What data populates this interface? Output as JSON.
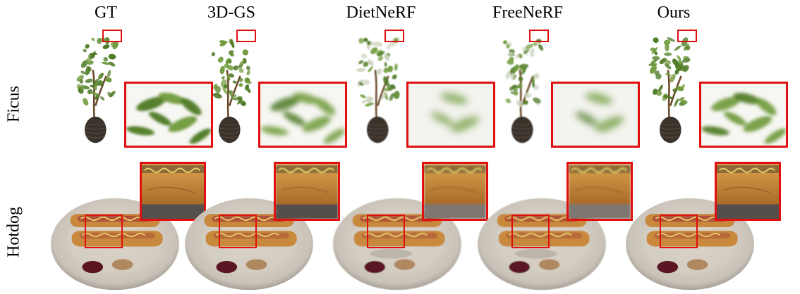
{
  "columns": [
    {
      "id": "gt",
      "title": "GT"
    },
    {
      "id": "3dgs",
      "title": "3D-GS"
    },
    {
      "id": "dietnerf",
      "title": "DietNeRF"
    },
    {
      "id": "freenerf",
      "title": "FreeNeRF"
    },
    {
      "id": "ours",
      "title": "Ours"
    }
  ],
  "rows": [
    {
      "id": "ficus",
      "label": "Ficus"
    },
    {
      "id": "hotdog",
      "label": "Hotdog"
    }
  ],
  "colors": {
    "highlight": "#e01010",
    "leaf": "#6f9a3a",
    "leaf_dark": "#4e7a25",
    "pot": "#3a332c",
    "bread": "#c8893c",
    "sausage": "#b0523a",
    "plate": "#c9c2b8"
  },
  "quality": {
    "ficus": [
      1.0,
      0.75,
      0.45,
      0.5,
      0.9
    ],
    "hotdog": [
      1.0,
      0.75,
      0.55,
      0.5,
      0.9
    ]
  }
}
